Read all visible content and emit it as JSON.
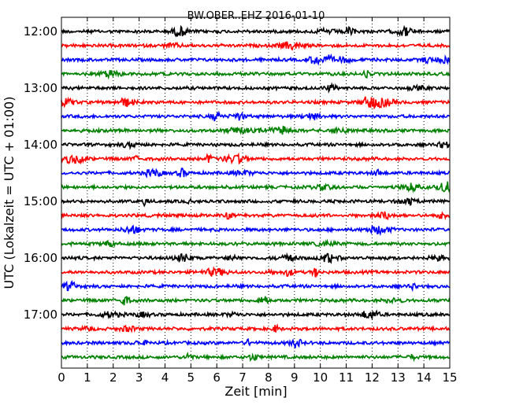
{
  "chart_data": {
    "type": "line",
    "title": "BW.OBER..EHZ 2016-01-10",
    "xlabel": "Zeit  [min]",
    "ylabel": "UTC (Lokalzeit = UTC + 01:00)",
    "xlim": [
      0,
      15
    ],
    "x_ticks": [
      "0",
      "1",
      "2",
      "3",
      "4",
      "5",
      "6",
      "7",
      "8",
      "9",
      "10",
      "11",
      "12",
      "13",
      "14",
      "15"
    ],
    "y_ticks": [
      "12:00",
      "13:00",
      "14:00",
      "15:00",
      "16:00",
      "17:00"
    ],
    "grid": "vertical dotted",
    "color_cycle": [
      "#000000",
      "#ff0000",
      "#0000ff",
      "#008000"
    ],
    "traces": [
      {
        "start": "12:00",
        "color": "#000000"
      },
      {
        "start": "12:15",
        "color": "#ff0000"
      },
      {
        "start": "12:30",
        "color": "#0000ff"
      },
      {
        "start": "12:45",
        "color": "#008000"
      },
      {
        "start": "13:00",
        "color": "#000000"
      },
      {
        "start": "13:15",
        "color": "#ff0000"
      },
      {
        "start": "13:30",
        "color": "#0000ff"
      },
      {
        "start": "13:45",
        "color": "#008000"
      },
      {
        "start": "14:00",
        "color": "#000000"
      },
      {
        "start": "14:15",
        "color": "#ff0000"
      },
      {
        "start": "14:30",
        "color": "#0000ff"
      },
      {
        "start": "14:45",
        "color": "#008000"
      },
      {
        "start": "15:00",
        "color": "#000000"
      },
      {
        "start": "15:15",
        "color": "#ff0000"
      },
      {
        "start": "15:30",
        "color": "#0000ff"
      },
      {
        "start": "15:45",
        "color": "#008000"
      },
      {
        "start": "16:00",
        "color": "#000000"
      },
      {
        "start": "16:15",
        "color": "#ff0000"
      },
      {
        "start": "16:30",
        "color": "#0000ff"
      },
      {
        "start": "16:45",
        "color": "#008000"
      },
      {
        "start": "17:00",
        "color": "#000000"
      },
      {
        "start": "17:15",
        "color": "#ff0000"
      },
      {
        "start": "17:30",
        "color": "#0000ff"
      },
      {
        "start": "17:45",
        "color": "#008000"
      }
    ]
  }
}
